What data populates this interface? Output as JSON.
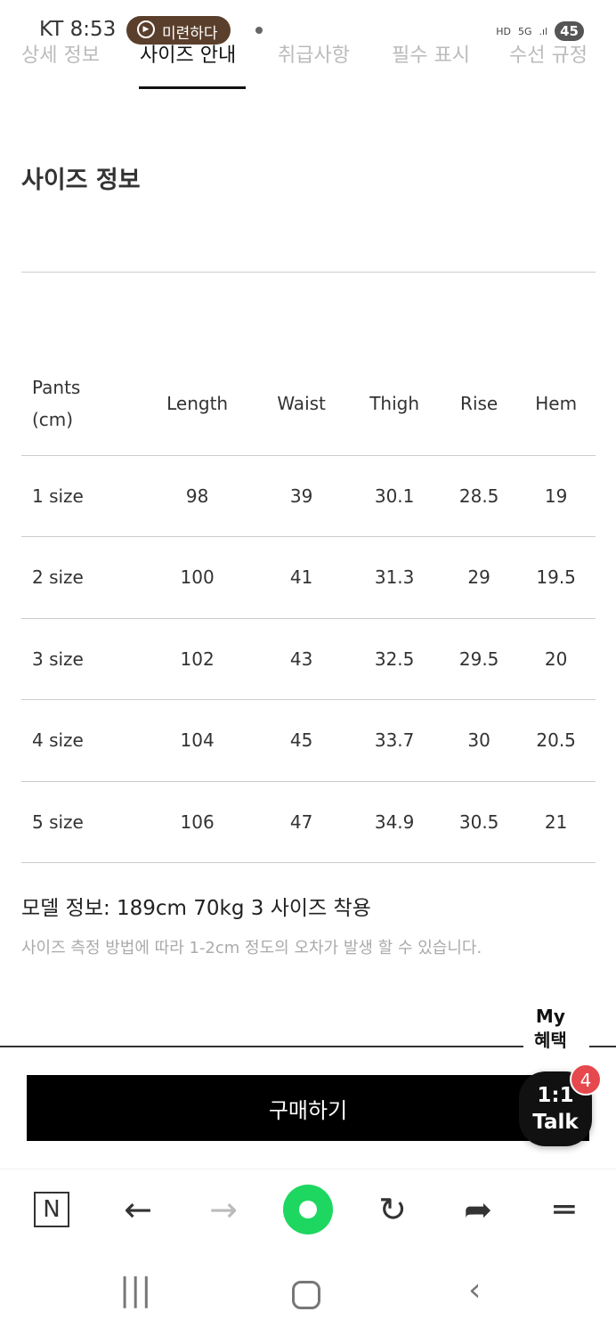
{
  "status": {
    "carrier_time": "KT 8:53",
    "media_pill": "미련하다",
    "icons": [
      "hd-icon",
      "5g-icon",
      "signal-icon"
    ],
    "battery": "45"
  },
  "tabs": [
    {
      "label": "상세 정보"
    },
    {
      "label": "사이즈 안내",
      "active": true
    },
    {
      "label": "취급사항"
    },
    {
      "label": "필수 표시"
    },
    {
      "label": "수선 규정"
    }
  ],
  "section_title": "사이즈 정보",
  "size_table": {
    "headers": [
      "Pants\n(cm)",
      "Length",
      "Waist",
      "Thigh",
      "Rise",
      "Hem"
    ],
    "rows": [
      [
        "1 size",
        "98",
        "39",
        "30.1",
        "28.5",
        "19"
      ],
      [
        "2 size",
        "100",
        "41",
        "31.3",
        "29",
        "19.5"
      ],
      [
        "3 size",
        "102",
        "43",
        "32.5",
        "29.5",
        "20"
      ],
      [
        "4 size",
        "104",
        "45",
        "33.7",
        "30",
        "20.5"
      ],
      [
        "5 size",
        "106",
        "47",
        "34.9",
        "30.5",
        "21"
      ]
    ]
  },
  "model_info": "모델 정보: 189cm 70kg 3 사이즈 착용",
  "note": "사이즈 측정 방법에 따라 1-2cm 정도의 오차가 발생 할 수 있습니다.",
  "my_benefit": "My\n혜택",
  "buy_label": "구매하기",
  "talk": {
    "label": "1:1\nTalk",
    "badge": "4"
  },
  "browser_bar": {
    "home": "N"
  },
  "colors": {
    "buy": "#000000",
    "badge": "#e5484d",
    "accent_green": "#1ed760"
  }
}
